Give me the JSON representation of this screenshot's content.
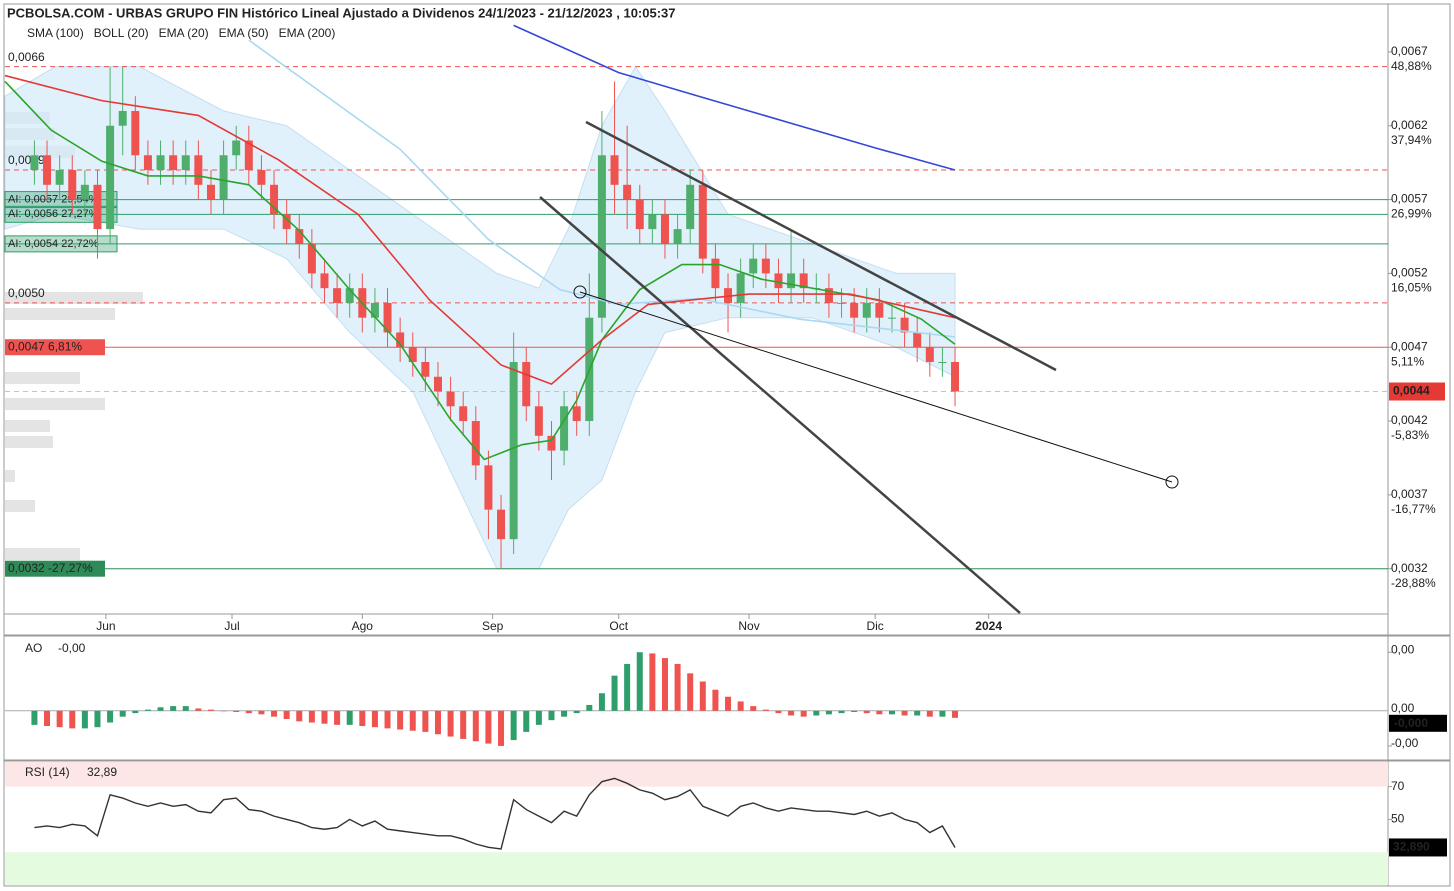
{
  "chart_data": [
    {
      "type": "candlestick",
      "title": "PCBOLSA.COM - URBAS GRUPO FIN Histórico Lineal Ajustado a Dividenos 24/1/2023 - 21/12/2023 , 10:05:37",
      "colors": {
        "up": "#4fae6c",
        "down": "#ef5350"
      },
      "x": [
        135,
        138,
        141,
        144,
        147,
        150,
        153,
        156,
        159,
        162,
        165,
        168,
        171,
        174,
        177,
        180,
        183,
        186,
        189,
        192,
        195,
        198,
        201,
        204,
        207,
        210,
        213,
        216,
        219,
        222,
        225,
        228,
        231,
        234,
        237,
        240,
        243,
        246,
        249,
        252,
        255,
        258,
        261,
        264,
        267,
        270,
        273,
        276,
        279,
        282,
        285,
        288,
        291,
        294,
        297,
        300,
        303,
        306,
        309,
        312,
        315,
        318,
        321,
        324,
        327,
        330,
        333,
        336,
        339,
        342,
        345,
        348,
        351,
        354
      ],
      "ohlc": [
        [
          0.0059,
          0.0061,
          0.0058,
          0.006
        ],
        [
          0.006,
          0.0061,
          0.0057,
          0.0058
        ],
        [
          0.0058,
          0.006,
          0.0057,
          0.0059
        ],
        [
          0.0059,
          0.006,
          0.0056,
          0.0057
        ],
        [
          0.0057,
          0.0059,
          0.0056,
          0.0058
        ],
        [
          0.0058,
          0.0059,
          0.0053,
          0.0055
        ],
        [
          0.0055,
          0.0066,
          0.0054,
          0.0062
        ],
        [
          0.0062,
          0.0066,
          0.006,
          0.0063
        ],
        [
          0.0063,
          0.0064,
          0.0059,
          0.006
        ],
        [
          0.006,
          0.0061,
          0.0058,
          0.0059
        ],
        [
          0.0059,
          0.0061,
          0.0058,
          0.006
        ],
        [
          0.006,
          0.0061,
          0.0058,
          0.0059
        ],
        [
          0.0059,
          0.0061,
          0.0058,
          0.006
        ],
        [
          0.006,
          0.0061,
          0.0057,
          0.0058
        ],
        [
          0.0058,
          0.0059,
          0.0056,
          0.0057
        ],
        [
          0.0057,
          0.0061,
          0.0056,
          0.006
        ],
        [
          0.006,
          0.0062,
          0.0059,
          0.0061
        ],
        [
          0.0061,
          0.0062,
          0.0058,
          0.0059
        ],
        [
          0.0059,
          0.006,
          0.0057,
          0.0058
        ],
        [
          0.0058,
          0.0059,
          0.0055,
          0.0056
        ],
        [
          0.0056,
          0.0057,
          0.0054,
          0.0055
        ],
        [
          0.0055,
          0.0056,
          0.0053,
          0.0054
        ],
        [
          0.0054,
          0.0055,
          0.0051,
          0.0052
        ],
        [
          0.0052,
          0.0053,
          0.005,
          0.0051
        ],
        [
          0.0051,
          0.0052,
          0.0049,
          0.005
        ],
        [
          0.005,
          0.0052,
          0.0049,
          0.0051
        ],
        [
          0.0051,
          0.0052,
          0.0048,
          0.0049
        ],
        [
          0.0049,
          0.0051,
          0.0048,
          0.005
        ],
        [
          0.005,
          0.0051,
          0.0047,
          0.0048
        ],
        [
          0.0048,
          0.0049,
          0.0046,
          0.0047
        ],
        [
          0.0047,
          0.0048,
          0.0045,
          0.0046
        ],
        [
          0.0046,
          0.0047,
          0.0044,
          0.0045
        ],
        [
          0.0045,
          0.0046,
          0.0043,
          0.0044
        ],
        [
          0.0044,
          0.0045,
          0.0042,
          0.0043
        ],
        [
          0.0043,
          0.0044,
          0.0041,
          0.0042
        ],
        [
          0.0042,
          0.0043,
          0.0038,
          0.0039
        ],
        [
          0.0039,
          0.004,
          0.0034,
          0.0036
        ],
        [
          0.0036,
          0.0037,
          0.0032,
          0.0034
        ],
        [
          0.0034,
          0.0048,
          0.0033,
          0.0046
        ],
        [
          0.0046,
          0.0047,
          0.0042,
          0.0043
        ],
        [
          0.0043,
          0.0044,
          0.004,
          0.0041
        ],
        [
          0.0041,
          0.0042,
          0.0038,
          0.004
        ],
        [
          0.004,
          0.0044,
          0.0039,
          0.0043
        ],
        [
          0.0043,
          0.0044,
          0.0041,
          0.0042
        ],
        [
          0.0042,
          0.0052,
          0.0041,
          0.0049
        ],
        [
          0.0049,
          0.0063,
          0.0048,
          0.006
        ],
        [
          0.006,
          0.0065,
          0.0056,
          0.0058
        ],
        [
          0.0058,
          0.0062,
          0.0055,
          0.0057
        ],
        [
          0.0057,
          0.0058,
          0.0054,
          0.0055
        ],
        [
          0.0055,
          0.0057,
          0.0054,
          0.0056
        ],
        [
          0.0056,
          0.0057,
          0.0053,
          0.0054
        ],
        [
          0.0054,
          0.0056,
          0.0053,
          0.0055
        ],
        [
          0.0055,
          0.0059,
          0.0054,
          0.0058
        ],
        [
          0.0058,
          0.0059,
          0.0052,
          0.0053
        ],
        [
          0.0053,
          0.0054,
          0.005,
          0.0051
        ],
        [
          0.0051,
          0.0052,
          0.0048,
          0.005
        ],
        [
          0.005,
          0.0053,
          0.0049,
          0.0052
        ],
        [
          0.0052,
          0.0054,
          0.0051,
          0.0053
        ],
        [
          0.0053,
          0.0054,
          0.0051,
          0.0052
        ],
        [
          0.0052,
          0.0053,
          0.005,
          0.0051
        ],
        [
          0.0051,
          0.0055,
          0.005,
          0.0052
        ],
        [
          0.0052,
          0.0053,
          0.005,
          0.0051
        ],
        [
          0.0051,
          0.0052,
          0.005,
          0.0051
        ],
        [
          0.0051,
          0.0052,
          0.0049,
          0.005
        ],
        [
          0.005,
          0.0051,
          0.0049,
          0.005
        ],
        [
          0.005,
          0.0051,
          0.0048,
          0.0049
        ],
        [
          0.0049,
          0.0051,
          0.0048,
          0.005
        ],
        [
          0.005,
          0.0051,
          0.0048,
          0.0049
        ],
        [
          0.0049,
          0.005,
          0.0048,
          0.0049
        ],
        [
          0.0049,
          0.005,
          0.0047,
          0.0048
        ],
        [
          0.0048,
          0.0049,
          0.0046,
          0.0047
        ],
        [
          0.0047,
          0.0048,
          0.0045,
          0.0046
        ],
        [
          0.0046,
          0.0047,
          0.0045,
          0.0046
        ],
        [
          0.0046,
          0.0047,
          0.0043,
          0.0044
        ]
      ],
      "series": [
        {
          "name": "SMA (100)",
          "color": "#a9d8f2",
          "x": [
            186,
            222,
            243,
            260,
            274,
            293,
            317,
            354
          ],
          "values": [
            0.00678,
            0.00604,
            0.00543,
            0.00509,
            0.00499,
            0.00503,
            0.00489,
            0.00477
          ]
        },
        {
          "name": "BOLL (20)",
          "color": "#d4ebfa",
          "x": [
            128,
            140,
            160,
            180,
            195,
            210,
            225,
            235,
            245,
            255,
            262,
            270,
            278,
            285,
            300,
            320,
            340,
            354
          ],
          "upper": [
            0.0064,
            0.0066,
            0.0066,
            0.0063,
            0.0062,
            0.0059,
            0.0056,
            0.0054,
            0.0052,
            0.0051,
            0.0055,
            0.0062,
            0.0066,
            0.0063,
            0.0056,
            0.0054,
            0.0052,
            0.0052
          ],
          "lower": [
            0.0055,
            0.0056,
            0.0055,
            0.0055,
            0.0053,
            0.0048,
            0.0044,
            0.0038,
            0.0032,
            0.0032,
            0.0036,
            0.0038,
            0.0044,
            0.0048,
            0.0049,
            0.0049,
            0.0047,
            0.0045
          ]
        },
        {
          "name": "EMA (20)",
          "color": "#2aa52a",
          "x": [
            128,
            139,
            151,
            162,
            174,
            186,
            198,
            210,
            222,
            234,
            242,
            251,
            258,
            264,
            270,
            279,
            289,
            298,
            308,
            322,
            336,
            346,
            354
          ],
          "values": [
            0.0065,
            0.00617,
            0.00596,
            0.00586,
            0.00586,
            0.0058,
            0.00549,
            0.00509,
            0.00472,
            0.00421,
            0.00394,
            0.00404,
            0.00407,
            0.00434,
            0.00475,
            0.00509,
            0.00526,
            0.00526,
            0.00516,
            0.00509,
            0.00502,
            0.00489,
            0.00472
          ]
        },
        {
          "name": "EMA (50)",
          "color": "#e53935",
          "x": [
            128,
            151,
            174,
            193,
            212,
            229,
            246,
            258,
            270,
            281,
            305,
            329,
            354
          ],
          "values": [
            0.00654,
            0.00637,
            0.00627,
            0.00597,
            0.0056,
            0.00502,
            0.00458,
            0.00445,
            0.00475,
            0.00499,
            0.00506,
            0.00506,
            0.0049
          ]
        },
        {
          "name": "EMA (200)",
          "color": "#3547d8",
          "x": [
            249,
            274,
            293,
            317,
            335,
            354
          ],
          "values": [
            0.00688,
            0.00656,
            0.0064,
            0.0062,
            0.00605,
            0.0059
          ]
        }
      ],
      "xlim": [
        128,
        457
      ],
      "xticks": [
        {
          "value": 152,
          "label": "Jun"
        },
        {
          "value": 182,
          "label": "Jul"
        },
        {
          "value": 213,
          "label": "Ago"
        },
        {
          "value": 244,
          "label": "Sep"
        },
        {
          "value": 274,
          "label": "Oct"
        },
        {
          "value": 305,
          "label": "Nov"
        },
        {
          "value": 335,
          "label": "Dic"
        },
        {
          "value": 362,
          "label": "2024"
        }
      ],
      "ylim": [
        0.0029,
        0.00695
      ],
      "yticks": [
        {
          "value": 0.0067,
          "label": "0,0067"
        },
        {
          "value": 0.0062,
          "label": "0,0062"
        },
        {
          "value": 0.0057,
          "label": "0,0057"
        },
        {
          "value": 0.0052,
          "label": "0,0052"
        },
        {
          "value": 0.0047,
          "label": "0,0047"
        },
        {
          "value": 0.0042,
          "label": "0,0042"
        },
        {
          "value": 0.0037,
          "label": "0,0037"
        },
        {
          "value": 0.0032,
          "label": "0,0032"
        }
      ],
      "ytick_changes": [
        "48,88%",
        "37,94%",
        "26,99%",
        "16,05%",
        "5,11%",
        "-5,83%",
        "-16,77%",
        "-28,88%"
      ],
      "current": {
        "value": 0.0044,
        "label": "0,0044",
        "color": "#e53935"
      },
      "levels": [
        {
          "value": 0.0066,
          "label": "0,0066",
          "color": "#ef5350",
          "style": "dashed",
          "label_style": "plain"
        },
        {
          "value": 0.0059,
          "label": "0,0059",
          "color": "#ef5350",
          "style": "dashed",
          "label_style": "plain"
        },
        {
          "value": 0.0057,
          "label": "AI: 0,0057  29,54%",
          "color": "#2e9e6a",
          "style": "solid",
          "label_style": "box"
        },
        {
          "value": 0.0056,
          "label": "AI: 0,0056  27,27%",
          "color": "#2e9e6a",
          "style": "solid",
          "label_style": "box"
        },
        {
          "value": 0.0054,
          "label": "AI: 0,0054  22,72%",
          "color": "#2e9e6a",
          "style": "solid",
          "label_style": "box"
        },
        {
          "value": 0.005,
          "label": "0,0050",
          "color": "#ef5350",
          "style": "dashed",
          "label_style": "plain"
        },
        {
          "value": 0.0047,
          "label": "0,0047  6,81%",
          "color": "#ef5350",
          "style": "solid",
          "label_style": "tag"
        },
        {
          "value": 0.0044,
          "color": "#a5d6b5",
          "style": "dashed"
        },
        {
          "value": 0.0032,
          "label": "0,0032  -27,27%",
          "color": "#2e8b57",
          "style": "solid",
          "label_style": "tag"
        }
      ]
    },
    {
      "type": "ao",
      "title": "AO",
      "current_label": "-0,00",
      "axis_label": "-0,000",
      "colors": {
        "up": "#2e9e6a",
        "down": "#ef5350"
      },
      "values": [
        -0.00012,
        -0.00013,
        -0.00014,
        -0.00015,
        -0.00015,
        -0.00014,
        -0.0001,
        -5e-05,
        -2e-05,
        1e-05,
        3e-05,
        4e-05,
        4e-05,
        2e-05,
        1e-05,
        0,
        -1e-05,
        -2e-05,
        -3e-05,
        -5e-05,
        -7e-05,
        -9e-05,
        -0.0001,
        -0.00011,
        -0.00012,
        -0.00012,
        -0.00013,
        -0.00014,
        -0.00015,
        -0.00016,
        -0.00017,
        -0.00018,
        -0.0002,
        -0.00022,
        -0.00024,
        -0.00026,
        -0.00028,
        -0.0003,
        -0.00025,
        -0.00018,
        -0.00012,
        -8e-05,
        -5e-05,
        -2e-05,
        5e-05,
        0.00015,
        0.0003,
        0.0004,
        0.0005,
        0.00049,
        0.00045,
        0.0004,
        0.00032,
        0.00025,
        0.00018,
        0.00012,
        8e-05,
        4e-05,
        1e-05,
        -2e-05,
        -4e-05,
        -5e-05,
        -4e-05,
        -3e-05,
        -2e-05,
        -1e-05,
        -2e-05,
        -3e-05,
        -3e-05,
        -4e-05,
        -4e-05,
        -5e-05,
        -5e-05,
        -6e-05
      ],
      "ylim": [
        -0.00042,
        0.00063
      ],
      "yticks": [
        {
          "value": 0.0005,
          "label": "0,00"
        },
        {
          "value": 0,
          "label": "0,00"
        },
        {
          "value": -0.0003,
          "label": "-0,00"
        }
      ]
    },
    {
      "type": "rsi",
      "title": "RSI (14)",
      "current_label": "32,89",
      "axis_label": "32,890",
      "color": "#333333",
      "values": [
        45,
        46,
        45,
        47,
        46,
        40,
        65,
        63,
        60,
        58,
        60,
        58,
        59,
        55,
        54,
        62,
        63,
        56,
        55,
        52,
        50,
        48,
        45,
        44,
        45,
        50,
        46,
        49,
        44,
        43,
        42,
        41,
        40,
        40,
        38,
        35,
        33,
        32,
        62,
        56,
        52,
        48,
        55,
        52,
        65,
        73,
        75,
        72,
        68,
        66,
        62,
        64,
        68,
        58,
        55,
        52,
        58,
        60,
        57,
        55,
        57,
        56,
        55,
        55,
        54,
        53,
        55,
        52,
        54,
        50,
        48,
        42,
        46,
        32.89
      ],
      "ylim": [
        10,
        85
      ],
      "yticks": [
        70,
        50
      ],
      "overbought": 70,
      "oversold": 30
    }
  ]
}
